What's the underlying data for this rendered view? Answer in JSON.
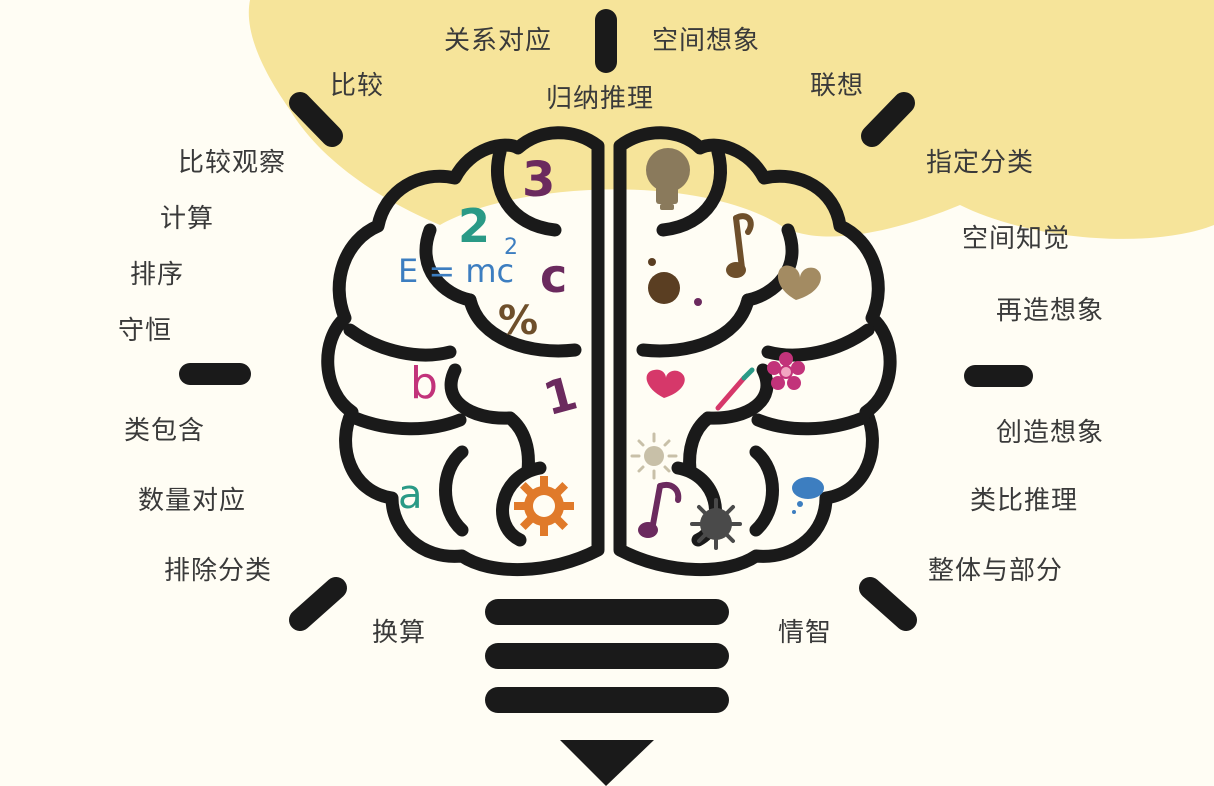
{
  "labels": {
    "top_left_1": "关系对应",
    "top_right_1": "空间想象",
    "top_center": "归纳推理",
    "left_1": "比较",
    "left_2": "比较观察",
    "left_3": "计算",
    "left_4": "排序",
    "left_5": "守恒",
    "left_6": "类包含",
    "left_7": "数量对应",
    "left_8": "排除分类",
    "left_9": "换算",
    "right_1": "联想",
    "right_2": "指定分类",
    "right_3": "空间知觉",
    "right_4": "再造想象",
    "right_5": "创造想象",
    "right_6": "类比推理",
    "right_7": "整体与部分",
    "right_8": "情智"
  },
  "brain_symbols": {
    "three": "3",
    "two": "2",
    "formula": "E = mc",
    "superscript": "2",
    "c": "c",
    "percent": "%",
    "b": "b",
    "one": "1",
    "a": "a"
  },
  "icons": [
    "bulb-icon",
    "music-note-icon",
    "heart-icon",
    "brush-icon",
    "flower-icon",
    "sun-icon",
    "cloud-icon",
    "gear-icon",
    "splat-icon"
  ],
  "colors": {
    "background": "#fffdf4",
    "glow": "#f6e49a",
    "outline": "#1a1a1a",
    "label": "#3a3a3a",
    "purple": "#6b2a5e",
    "teal": "#2a9a86",
    "blue": "#3d7ec0",
    "magenta": "#c2337a",
    "brown": "#6e4f2b",
    "orange": "#e07a2a",
    "pink": "#d6386a",
    "tan": "#a38b62",
    "gray": "#5a5a5a"
  }
}
